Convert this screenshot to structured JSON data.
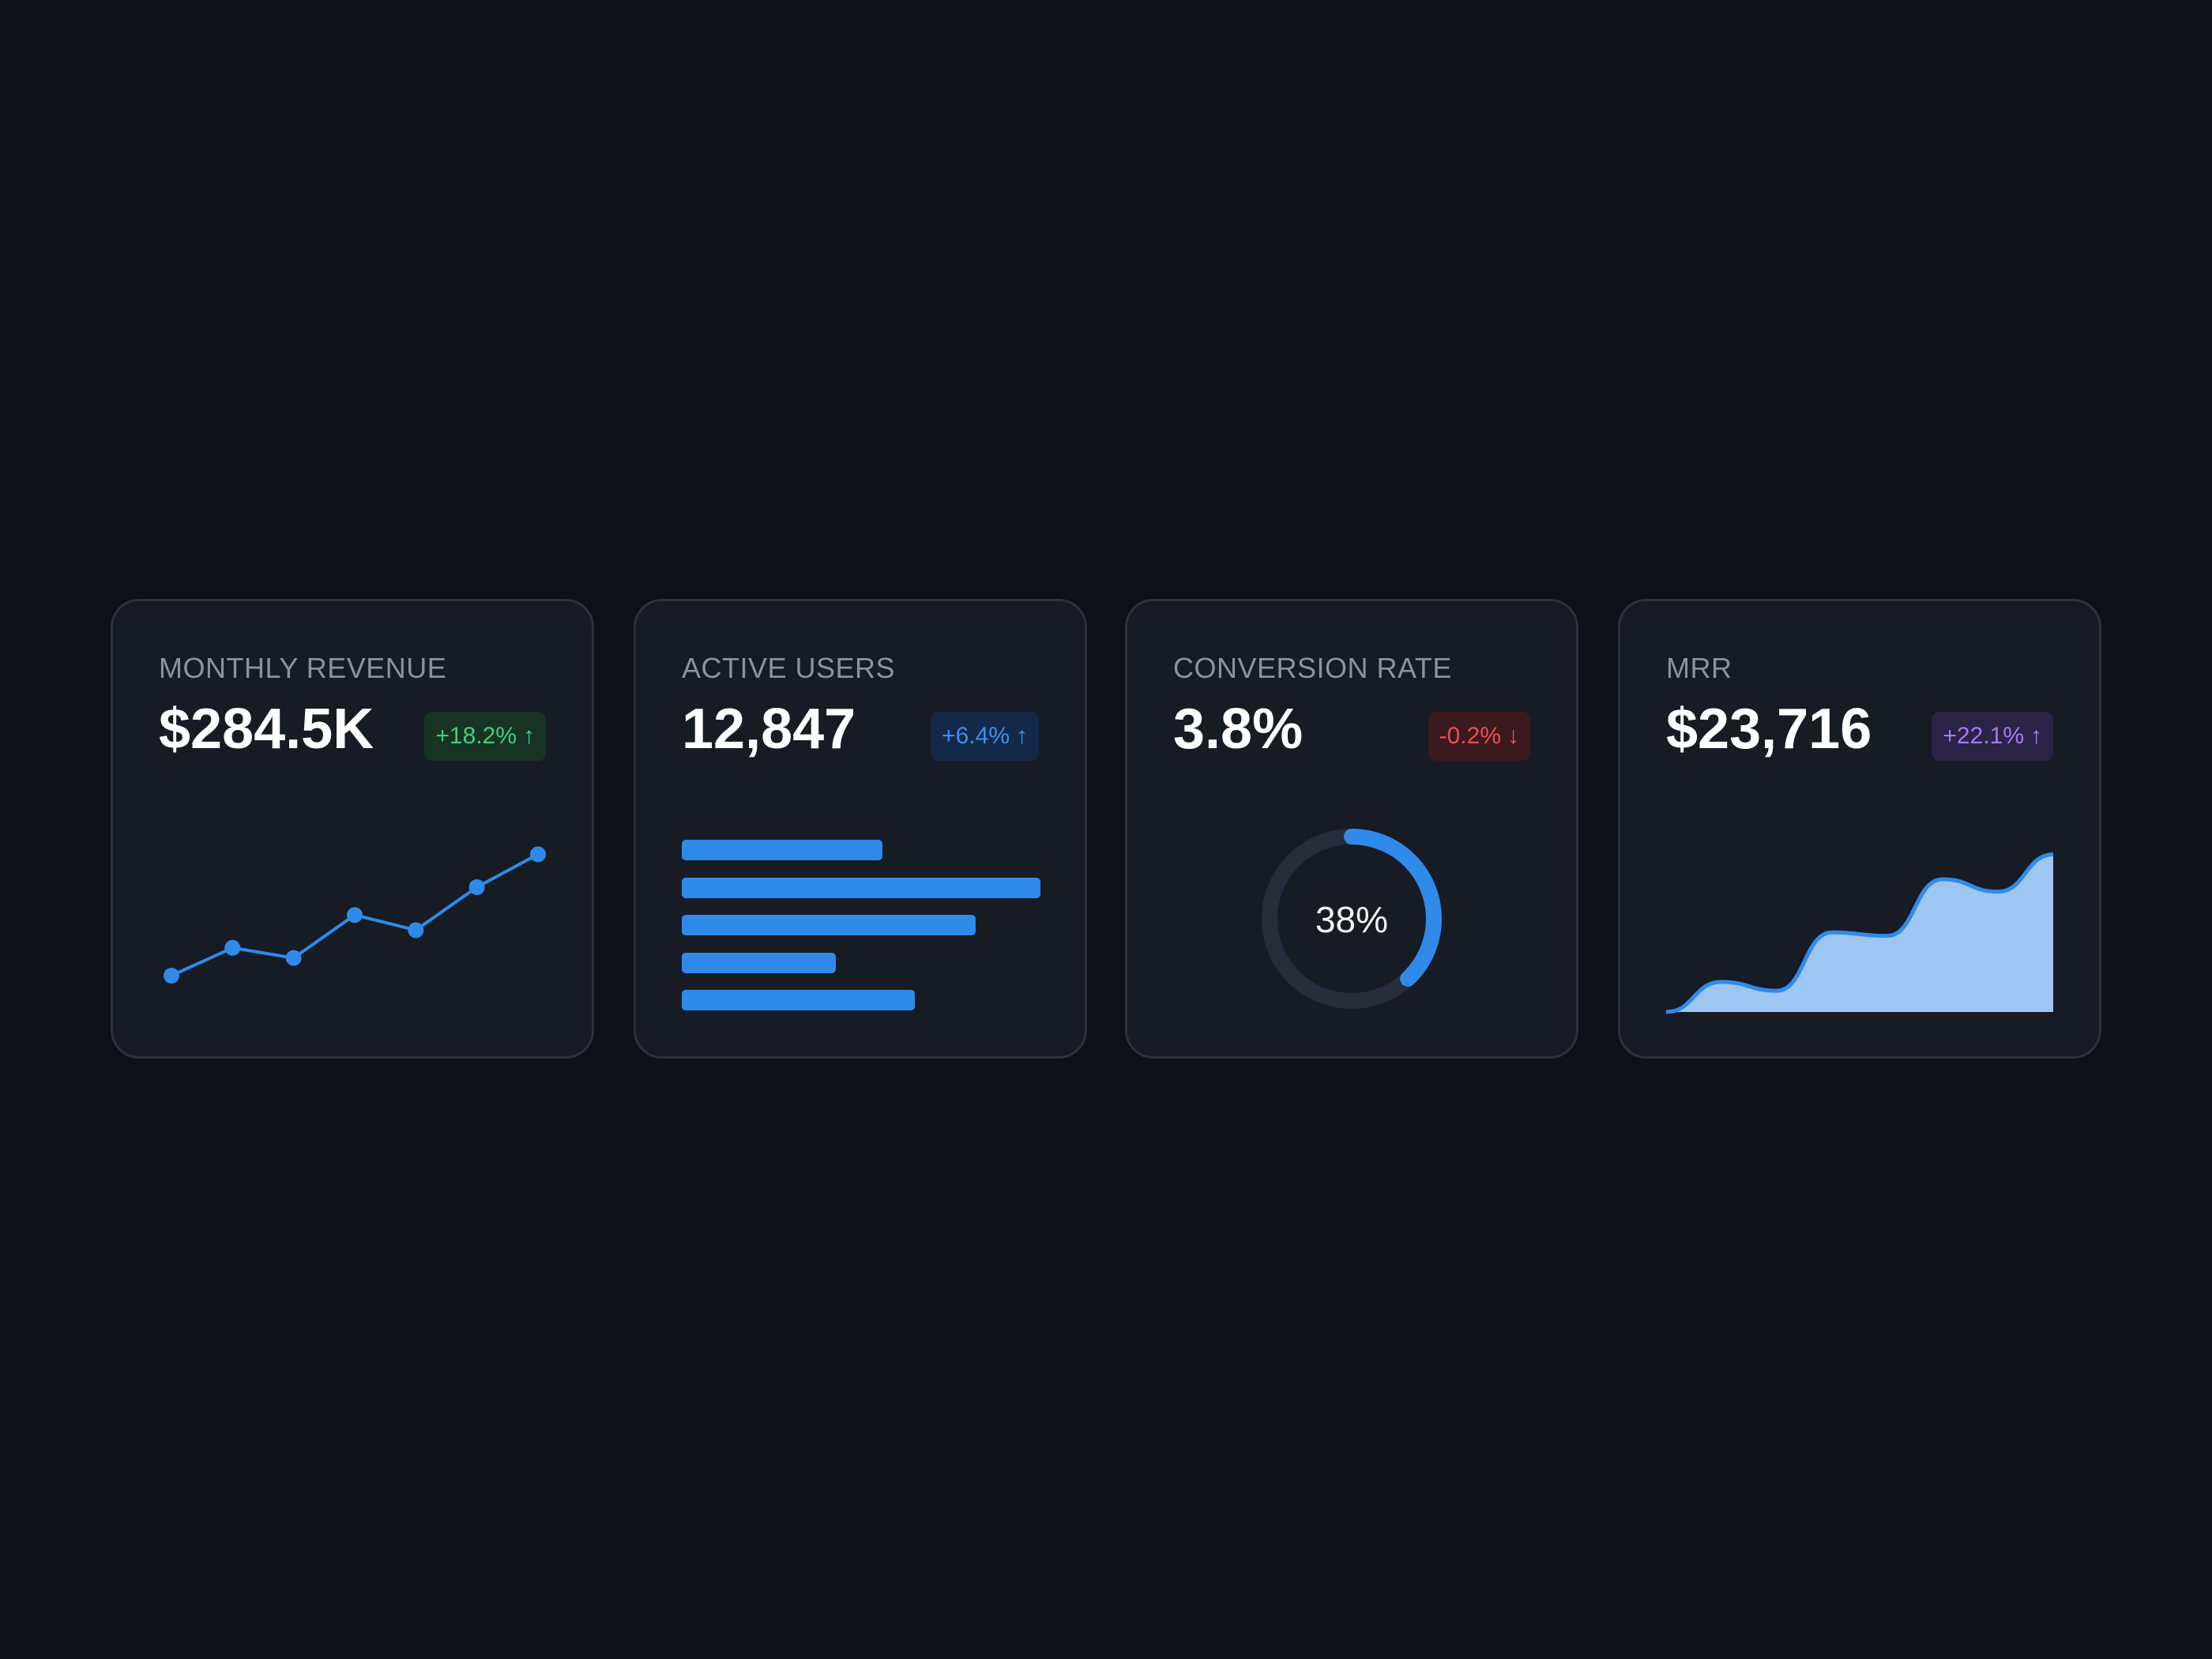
{
  "colors": {
    "background": "#0e1117",
    "card": "#171b24",
    "accent_blue": "#2f8aea",
    "positive_green": "#3fcf79",
    "negative_red": "#ef4b52",
    "highlight_purple": "#a679f2"
  },
  "cards": [
    {
      "title": "MONTHLY REVENUE",
      "value": "$284.5K",
      "change": "+18.2%",
      "trend_icon": "arrow-up-icon",
      "trend_arrow": "↑",
      "badge_color": "green"
    },
    {
      "title": "ACTIVE USERS",
      "value": "12,847",
      "change": "+6.4%",
      "trend_icon": "arrow-up-icon",
      "trend_arrow": "↑",
      "badge_color": "blue"
    },
    {
      "title": "CONVERSION RATE",
      "value": "3.8%",
      "change": "-0.2%",
      "trend_icon": "arrow-down-icon",
      "trend_arrow": "↓",
      "badge_color": "red"
    },
    {
      "title": "MRR",
      "value": "$23,716",
      "change": "+22.1%",
      "trend_icon": "arrow-up-icon",
      "trend_arrow": "↑",
      "badge_color": "purple"
    }
  ],
  "chart_data": [
    {
      "type": "line",
      "values": [
        1,
        2.1,
        1.7,
        3.4,
        2.8,
        4.5,
        5.8
      ],
      "ylim": [
        0,
        6
      ],
      "grid": false
    },
    {
      "type": "bar",
      "orientation": "horizontal",
      "values": [
        56,
        100,
        82,
        43,
        65
      ],
      "xlim": [
        0,
        100
      ],
      "grid": false
    },
    {
      "type": "pie",
      "style": "donut",
      "values": [
        38,
        62
      ],
      "center_label": "38%"
    },
    {
      "type": "area",
      "values": [
        0,
        1.7,
        1.2,
        4.5,
        4.3,
        7.5,
        6.8,
        8.9
      ],
      "ylim": [
        0,
        10
      ],
      "grid": false
    }
  ]
}
